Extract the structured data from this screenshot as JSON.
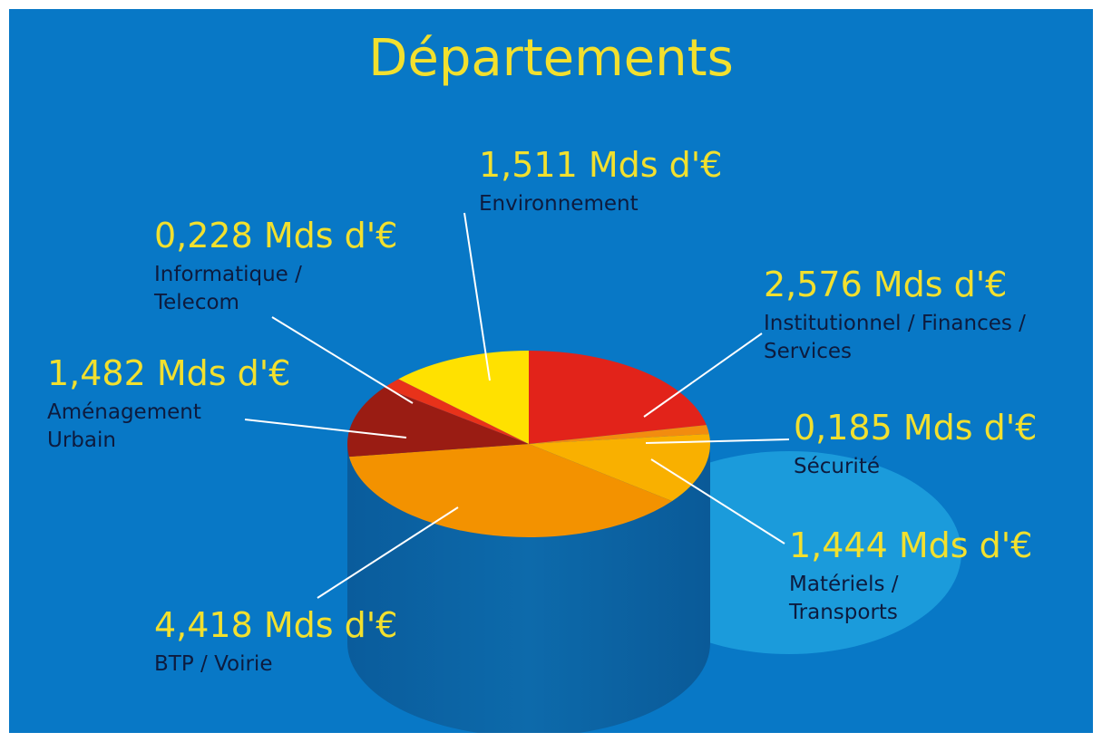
{
  "chart_data": {
    "type": "pie",
    "title": "Départements",
    "categories": [
      "Institutionnel / Finances / Services",
      "Sécurité",
      "Matériels / Transports",
      "BTP / Voirie",
      "Aménagement Urbain",
      "Informatique / Telecom",
      "Environnement"
    ],
    "values": [
      2.576,
      0.185,
      1.444,
      4.418,
      1.482,
      0.228,
      1.511
    ],
    "value_labels": [
      "2,576 Mds d'€",
      "0,185 Mds d'€",
      "1,444 Mds d'€",
      "4,418 Mds d'€",
      "1,482 Mds d'€",
      "0,228 Mds d'€",
      "1,511 Mds d'€"
    ],
    "colors": [
      "#e2231a",
      "#f28c0f",
      "#f9b000",
      "#f39200",
      "#9a1c13",
      "#e8321a",
      "#ffe100"
    ]
  }
}
